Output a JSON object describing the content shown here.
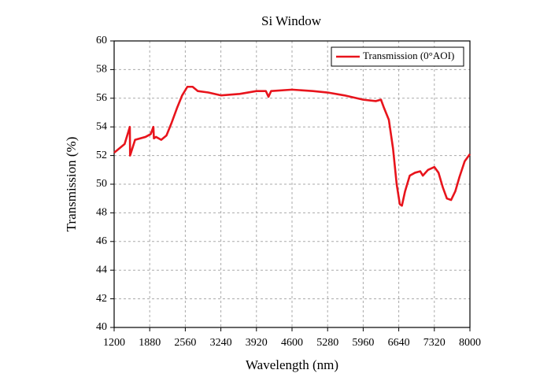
{
  "chart_data": {
    "type": "line",
    "title": "Si Window",
    "x_label": "Wavelength (nm)",
    "y_label": "Transmission (%)",
    "x": [
      1200,
      1400,
      1500,
      1505,
      1600,
      1800,
      1900,
      1950,
      1960,
      2000,
      2100,
      2200,
      2300,
      2400,
      2500,
      2600,
      2700,
      2800,
      3000,
      3240,
      3600,
      3920,
      4100,
      4150,
      4200,
      4600,
      5000,
      5280,
      5600,
      5960,
      6200,
      6300,
      6350,
      6450,
      6530,
      6600,
      6660,
      6700,
      6760,
      6850,
      6950,
      7050,
      7100,
      7200,
      7320,
      7400,
      7480,
      7560,
      7640,
      7720,
      7800,
      7900,
      8000
    ],
    "series": [
      {
        "name": "Transmission (0°AOI)",
        "color": "#e8141c",
        "values": [
          52.2,
          52.8,
          54.0,
          52.0,
          53.1,
          53.3,
          53.5,
          54.0,
          53.2,
          53.3,
          53.1,
          53.4,
          54.3,
          55.3,
          56.2,
          56.8,
          56.8,
          56.5,
          56.4,
          56.2,
          56.3,
          56.5,
          56.5,
          56.1,
          56.5,
          56.6,
          56.5,
          56.4,
          56.2,
          55.9,
          55.8,
          55.9,
          55.4,
          54.5,
          52.5,
          50.0,
          48.6,
          48.5,
          49.5,
          50.6,
          50.8,
          50.9,
          50.6,
          51.0,
          51.2,
          50.8,
          49.8,
          49.0,
          48.9,
          49.5,
          50.5,
          51.6,
          52.1
        ]
      }
    ],
    "xlim": [
      1200,
      8000
    ],
    "xticks": [
      1200,
      1880,
      2560,
      3240,
      3920,
      4600,
      5280,
      5960,
      6640,
      7320,
      8000
    ],
    "ylim": [
      40,
      60
    ],
    "yticks": [
      40,
      42,
      44,
      46,
      48,
      50,
      52,
      54,
      56,
      58,
      60
    ],
    "grid": true,
    "legend": "upper right"
  }
}
